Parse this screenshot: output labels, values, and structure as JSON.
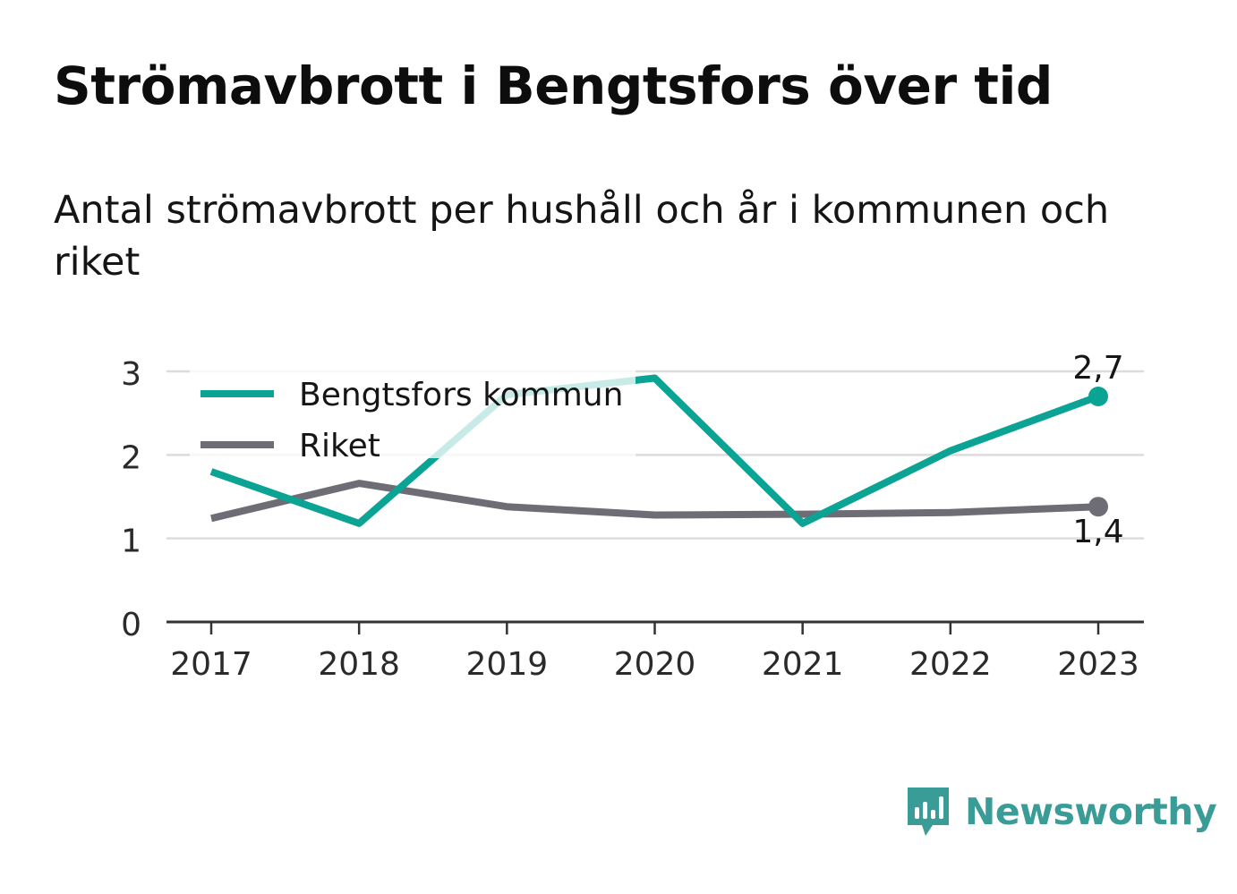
{
  "title": "Strömavbrott i Bengtsfors över tid",
  "subtitle": "Antal strömavbrott per hushåll och år i kommunen och riket",
  "brand": {
    "name": "Newsworthy",
    "icon": "chart-bubble-icon",
    "color": "#3a9c96"
  },
  "chart_data": {
    "type": "line",
    "x": [
      "2017",
      "2018",
      "2019",
      "2020",
      "2021",
      "2022",
      "2023"
    ],
    "ylim": [
      0,
      3
    ],
    "yticks": [
      "0",
      "1",
      "2",
      "3"
    ],
    "grid": true,
    "legend_position": "top-left",
    "series": [
      {
        "name": "Bengtsfors kommun",
        "color": "#0aa394",
        "values": [
          1.8,
          1.18,
          2.72,
          2.92,
          1.18,
          2.05,
          2.7
        ],
        "end_label": "2,7"
      },
      {
        "name": "Riket",
        "color": "#6e6c75",
        "values": [
          1.24,
          1.66,
          1.38,
          1.28,
          1.29,
          1.31,
          1.38
        ],
        "end_label": "1,4"
      }
    ]
  }
}
